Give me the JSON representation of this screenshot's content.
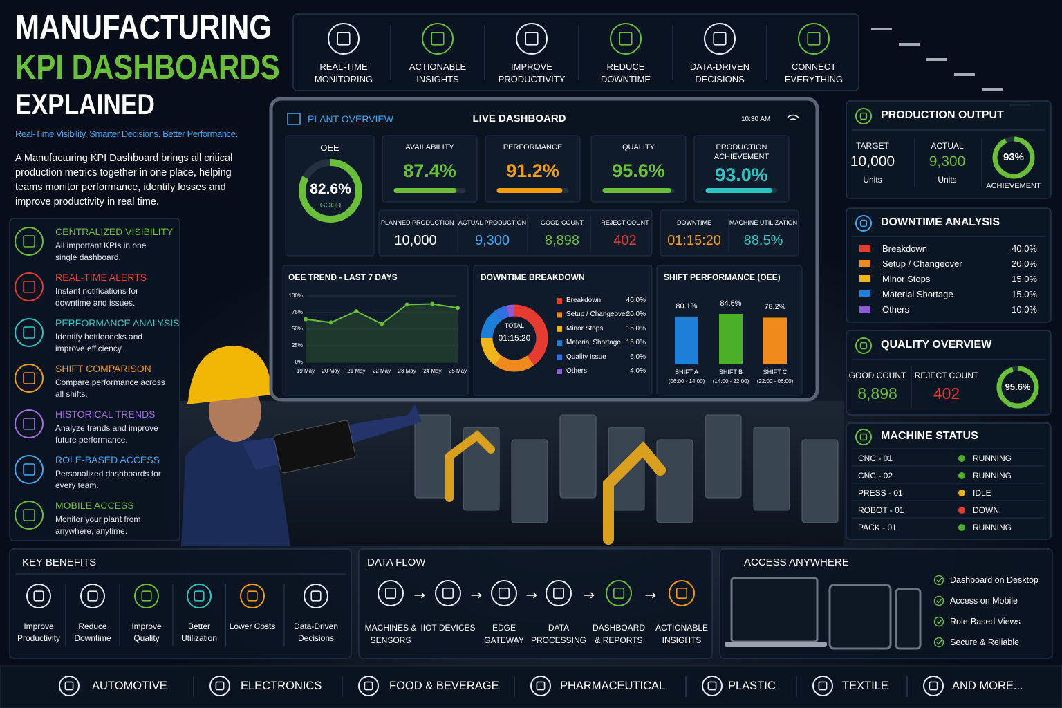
{
  "header": {
    "title_line1": "MANUFACTURING",
    "title_line2": "KPI DASHBOARDS",
    "title_line3": "EXPLAINED",
    "tagline": "Real-Time Visibility. Smarter Decisions. Better Performance.",
    "intro": "A Manufacturing KPI Dashboard brings all critical production metrics together in one place, helping teams monitor performance, identify losses and improve productivity in real time."
  },
  "top_features": [
    "REAL-TIME MONITORING",
    "ACTIONABLE INSIGHTS",
    "IMPROVE PRODUCTIVITY",
    "REDUCE DOWNTIME",
    "DATA-DRIVEN DECISIONS",
    "CONNECT EVERYTHING"
  ],
  "features": [
    {
      "title": "CENTRALIZED VISIBILITY",
      "text": "All important KPIs in one single dashboard.",
      "color": "#6abf3a"
    },
    {
      "title": "REAL-TIME ALERTS",
      "text": "Instant notifications for downtime and issues.",
      "color": "#e53b30"
    },
    {
      "title": "PERFORMANCE ANALYSIS",
      "text": "Identify bottlenecks and improve efficiency.",
      "color": "#2ec4c4"
    },
    {
      "title": "SHIFT COMPARISON",
      "text": "Compare performance across all shifts.",
      "color": "#f39c12"
    },
    {
      "title": "HISTORICAL TRENDS",
      "text": "Analyze trends and improve future performance.",
      "color": "#a46ee0"
    },
    {
      "title": "ROLE-BASED ACCESS",
      "text": "Personalized dashboards for every team.",
      "color": "#3fa9f5"
    },
    {
      "title": "MOBILE ACCESS",
      "text": "Monitor your plant from anywhere, anytime.",
      "color": "#6abf3a"
    }
  ],
  "dashboard": {
    "header": "PLANT OVERVIEW",
    "title": "LIVE DASHBOARD",
    "time": "10:30 AM",
    "oee": {
      "label": "OEE",
      "value": 82.6,
      "value_label": "82.6%",
      "status": "GOOD",
      "color": "#6abf3a"
    },
    "kpis": [
      {
        "label": "AVAILABILITY",
        "value": 87.4,
        "value_label": "87.4%",
        "color": "#6abf3a"
      },
      {
        "label": "PERFORMANCE",
        "value": 91.2,
        "value_label": "91.2%",
        "color": "#f39c12"
      },
      {
        "label": "QUALITY",
        "value": 95.6,
        "value_label": "95.6%",
        "color": "#6abf3a"
      },
      {
        "label": "PRODUCTION ACHIEVEMENT",
        "value": 93.0,
        "value_label": "93.0%",
        "color": "#2ec4c4"
      }
    ],
    "counts": [
      {
        "label": "PLANNED PRODUCTION",
        "value": "10,000",
        "color": "#ffffff"
      },
      {
        "label": "ACTUAL PRODUCTION",
        "value": "9,300",
        "color": "#3fa9f5"
      },
      {
        "label": "GOOD COUNT",
        "value": "8,898",
        "color": "#6abf3a"
      },
      {
        "label": "REJECT COUNT",
        "value": "402",
        "color": "#e53b30"
      },
      {
        "label": "DOWNTIME",
        "value": "01:15:20",
        "color": "#f39c12"
      },
      {
        "label": "MACHINE UTILIZATION",
        "value": "88.5%",
        "color": "#2ec4c4"
      }
    ],
    "oee_trend": {
      "type": "line",
      "title": "OEE TREND - LAST 7 DAYS",
      "categories": [
        "19 May",
        "20 May",
        "21 May",
        "22 May",
        "23 May",
        "24 May",
        "25 May"
      ],
      "values": [
        65,
        60,
        77,
        58,
        87,
        88,
        82
      ],
      "color": "#6abf3a",
      "ylim": [
        0,
        100
      ],
      "yticks": [
        {
          "value": 0,
          "label": "0%"
        },
        {
          "value": 25,
          "label": "25%"
        },
        {
          "value": 50,
          "label": "50%"
        },
        {
          "value": 75,
          "label": "75%"
        },
        {
          "value": 100,
          "label": "100%"
        }
      ],
      "grid": true
    },
    "downtime_breakdown": {
      "type": "pie",
      "title": "DOWNTIME BREAKDOWN",
      "center_label": "TOTAL",
      "center_value": "01:15:20",
      "categories": [
        "Breakdown",
        "Setup / Changeover",
        "Minor Stops",
        "Material Shortage",
        "Quality Issue",
        "Others"
      ],
      "values": [
        40.0,
        20.0,
        15.0,
        15.0,
        6.0,
        4.0
      ],
      "value_labels": [
        "40.0%",
        "20.0%",
        "15.0%",
        "15.0%",
        "6.0%",
        "4.0%"
      ],
      "colors": [
        "#e53b30",
        "#f08a1c",
        "#f1b51c",
        "#1e7fd8",
        "#2f6fe0",
        "#8e5bd6"
      ]
    },
    "shift_performance": {
      "type": "bar",
      "title": "SHIFT PERFORMANCE (OEE)",
      "categories": [
        "SHIFT A",
        "SHIFT B",
        "SHIFT C"
      ],
      "subtitles": [
        "(06:00 - 14:00)",
        "(14:00 - 22:00)",
        "(22:00 - 06:00)"
      ],
      "values": [
        80.1,
        84.6,
        78.2
      ],
      "value_labels": [
        "80.1%",
        "84.6%",
        "78.2%"
      ],
      "colors": [
        "#1e7fd8",
        "#4caf2a",
        "#f08a1c"
      ]
    }
  },
  "production_output": {
    "title": "PRODUCTION OUTPUT",
    "target": {
      "label": "TARGET",
      "value": "10,000",
      "unit": "Units"
    },
    "actual": {
      "label": "ACTUAL",
      "value": "9,300",
      "unit": "Units"
    },
    "achievement": {
      "value": 93,
      "value_label": "93%",
      "label": "ACHIEVEMENT"
    }
  },
  "downtime_analysis": {
    "title": "DOWNTIME ANALYSIS",
    "rows": [
      {
        "name": "Breakdown",
        "value": "40.0%",
        "color": "#e53b30"
      },
      {
        "name": "Setup / Changeover",
        "value": "20.0%",
        "color": "#f08a1c"
      },
      {
        "name": "Minor Stops",
        "value": "15.0%",
        "color": "#f1b51c"
      },
      {
        "name": "Material Shortage",
        "value": "15.0%",
        "color": "#1e7fd8"
      },
      {
        "name": "Others",
        "value": "10.0%",
        "color": "#8e5bd6"
      }
    ]
  },
  "quality_overview": {
    "title": "QUALITY OVERVIEW",
    "good": {
      "label": "GOOD COUNT",
      "value": "8,898"
    },
    "reject": {
      "label": "REJECT COUNT",
      "value": "402"
    },
    "quality": {
      "value": 95.6,
      "value_label": "95.6%"
    }
  },
  "machine_status": {
    "title": "MACHINE STATUS",
    "rows": [
      {
        "name": "CNC - 01",
        "status": "RUNNING",
        "color": "#4caf2a"
      },
      {
        "name": "CNC - 02",
        "status": "RUNNING",
        "color": "#4caf2a"
      },
      {
        "name": "PRESS - 01",
        "status": "IDLE",
        "color": "#f1b51c"
      },
      {
        "name": "ROBOT - 01",
        "status": "DOWN",
        "color": "#e53b30"
      },
      {
        "name": "PACK - 01",
        "status": "RUNNING",
        "color": "#4caf2a"
      }
    ]
  },
  "key_benefits": {
    "title": "KEY BENEFITS",
    "items": [
      "Improve Productivity",
      "Reduce Downtime",
      "Improve Quality",
      "Better Utilization",
      "Lower Costs",
      "Data-Driven Decisions"
    ]
  },
  "data_flow": {
    "title": "DATA FLOW",
    "steps": [
      "MACHINES & SENSORS",
      "IIOT DEVICES",
      "EDGE GATEWAY",
      "DATA PROCESSING",
      "DASHBOARD & REPORTS",
      "ACTIONABLE INSIGHTS"
    ]
  },
  "access_anywhere": {
    "title": "ACCESS ANYWHERE",
    "items": [
      "Dashboard on Desktop",
      "Access on Mobile",
      "Role-Based Views",
      "Secure & Reliable"
    ]
  },
  "industries": [
    "AUTOMOTIVE",
    "ELECTRONICS",
    "FOOD & BEVERAGE",
    "PHARMACEUTICAL",
    "PLASTIC",
    "TEXTILE",
    "AND MORE..."
  ]
}
